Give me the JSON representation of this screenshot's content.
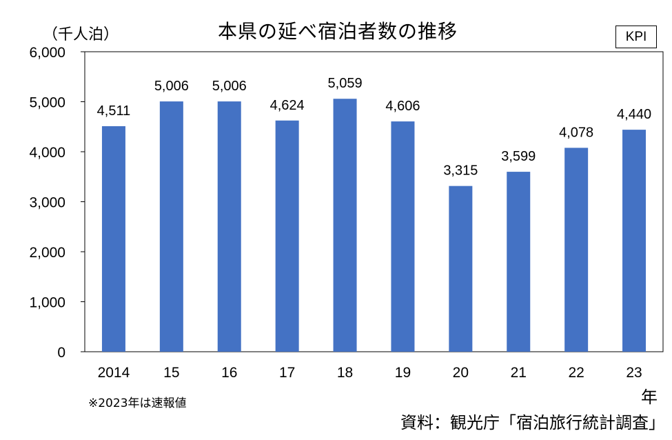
{
  "header": {
    "title": "本県の延べ宿泊者数の推移",
    "unit": "（千人泊）",
    "badge": "KPI"
  },
  "footer": {
    "note": "※2023年は速報値",
    "year_unit": "年",
    "source": "資料：観光庁「宿泊旅行統計調査」"
  },
  "colors": {
    "bar": "#4472C4",
    "axis": "#000000",
    "plot_border": "#000000"
  },
  "chart_data": {
    "type": "bar",
    "title": "本県の延べ宿泊者数の推移",
    "ylabel": "（千人泊）",
    "xlabel": "年",
    "categories": [
      "2014",
      "15",
      "16",
      "17",
      "18",
      "19",
      "20",
      "21",
      "22",
      "23"
    ],
    "values": [
      4511,
      5006,
      5006,
      4624,
      5059,
      4606,
      3315,
      3599,
      4078,
      4440
    ],
    "value_labels": [
      "4,511",
      "5,006",
      "5,006",
      "4,624",
      "5,059",
      "4,606",
      "3,315",
      "3,599",
      "4,078",
      "4,440"
    ],
    "ylim": [
      0,
      6000
    ],
    "yticks": [
      0,
      1000,
      2000,
      3000,
      4000,
      5000,
      6000
    ],
    "ytick_labels": [
      "0",
      "1,000",
      "2,000",
      "3,000",
      "4,000",
      "5,000",
      "6,000"
    ],
    "grid": false,
    "legend": "none"
  }
}
